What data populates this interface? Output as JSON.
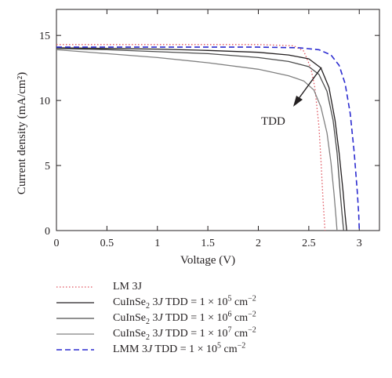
{
  "chart_data": {
    "type": "line",
    "title": "",
    "xlabel": "Voltage (V)",
    "ylabel": "Current density (mA/cm²)",
    "xlim": [
      0,
      3.2
    ],
    "ylim": [
      0,
      17
    ],
    "xticks": [
      "0",
      "0.5",
      "1",
      "1.5",
      "2",
      "2.5",
      "3"
    ],
    "yticks": [
      "0",
      "5",
      "10",
      "15"
    ],
    "grid": false,
    "legend_placement": "below",
    "annotation": {
      "text": "TDD",
      "arrow": "diagonal down-left across the CuInSe2 curves"
    },
    "series": [
      {
        "name": "LM 3J",
        "color": "#e0555f",
        "style": "dotted",
        "x": [
          0,
          1.0,
          2.0,
          2.35,
          2.45,
          2.52,
          2.56,
          2.6,
          2.62,
          2.64,
          2.66
        ],
        "y": [
          14.3,
          14.3,
          14.3,
          14.2,
          13.8,
          12.5,
          11.0,
          8.0,
          5.5,
          2.5,
          0
        ]
      },
      {
        "name": "CuInSe₂ 3J TDD = 1 × 10⁵ cm⁻²",
        "color": "#231f20",
        "style": "solid",
        "x": [
          0,
          0.5,
          1.0,
          1.5,
          2.0,
          2.3,
          2.5,
          2.62,
          2.7,
          2.76,
          2.8,
          2.84,
          2.86,
          2.875
        ],
        "y": [
          14.05,
          14.0,
          13.95,
          13.85,
          13.7,
          13.5,
          13.2,
          12.5,
          11.0,
          8.5,
          6.0,
          3.0,
          1.2,
          0
        ]
      },
      {
        "name": "CuInSe₂ 3J TDD = 1 × 10⁶ cm⁻²",
        "color": "#4d4d4d",
        "style": "solid",
        "x": [
          0,
          0.5,
          1.0,
          1.5,
          2.0,
          2.3,
          2.5,
          2.6,
          2.68,
          2.74,
          2.78,
          2.81,
          2.83,
          2.845
        ],
        "y": [
          14.0,
          13.9,
          13.75,
          13.6,
          13.3,
          13.0,
          12.6,
          12.0,
          10.7,
          8.5,
          6.0,
          3.0,
          1.2,
          0
        ]
      },
      {
        "name": "CuInSe₂ 3J TDD = 1 × 10⁷ cm⁻²",
        "color": "#808080",
        "style": "solid",
        "x": [
          0,
          0.5,
          1.0,
          1.5,
          2.0,
          2.3,
          2.45,
          2.55,
          2.62,
          2.68,
          2.72,
          2.75,
          2.77,
          2.78
        ],
        "y": [
          13.9,
          13.6,
          13.3,
          12.9,
          12.4,
          11.9,
          11.5,
          10.8,
          9.5,
          7.5,
          5.2,
          2.8,
          1.0,
          0
        ]
      },
      {
        "name": "LMM 3J TDD = 1 × 10⁵ cm⁻²",
        "color": "#2b2bd0",
        "style": "dashed",
        "x": [
          0,
          1.0,
          2.0,
          2.4,
          2.6,
          2.72,
          2.8,
          2.86,
          2.91,
          2.95,
          2.98,
          2.995,
          3.0
        ],
        "y": [
          14.1,
          14.1,
          14.1,
          14.05,
          13.9,
          13.5,
          12.7,
          11.3,
          9.0,
          6.0,
          3.0,
          1.2,
          0
        ]
      }
    ]
  },
  "legend": {
    "items": [
      {
        "prefix": "LM 3J",
        "sub": "",
        "mid": "",
        "sup": ""
      },
      {
        "prefix": "CuInSe",
        "sub": "2",
        "mid": "1 × 10",
        "exp": "5",
        "sup": "−2"
      },
      {
        "prefix": "CuInSe",
        "sub": "2",
        "mid": "1 × 10",
        "exp": "6",
        "sup": "−2"
      },
      {
        "prefix": "CuInSe",
        "sub": "2",
        "mid": "1 × 10",
        "exp": "7",
        "sup": "−2"
      },
      {
        "prefix": "LMM",
        "sub": "",
        "mid": "1 × 10",
        "exp": "5",
        "sup": "−2"
      }
    ]
  }
}
